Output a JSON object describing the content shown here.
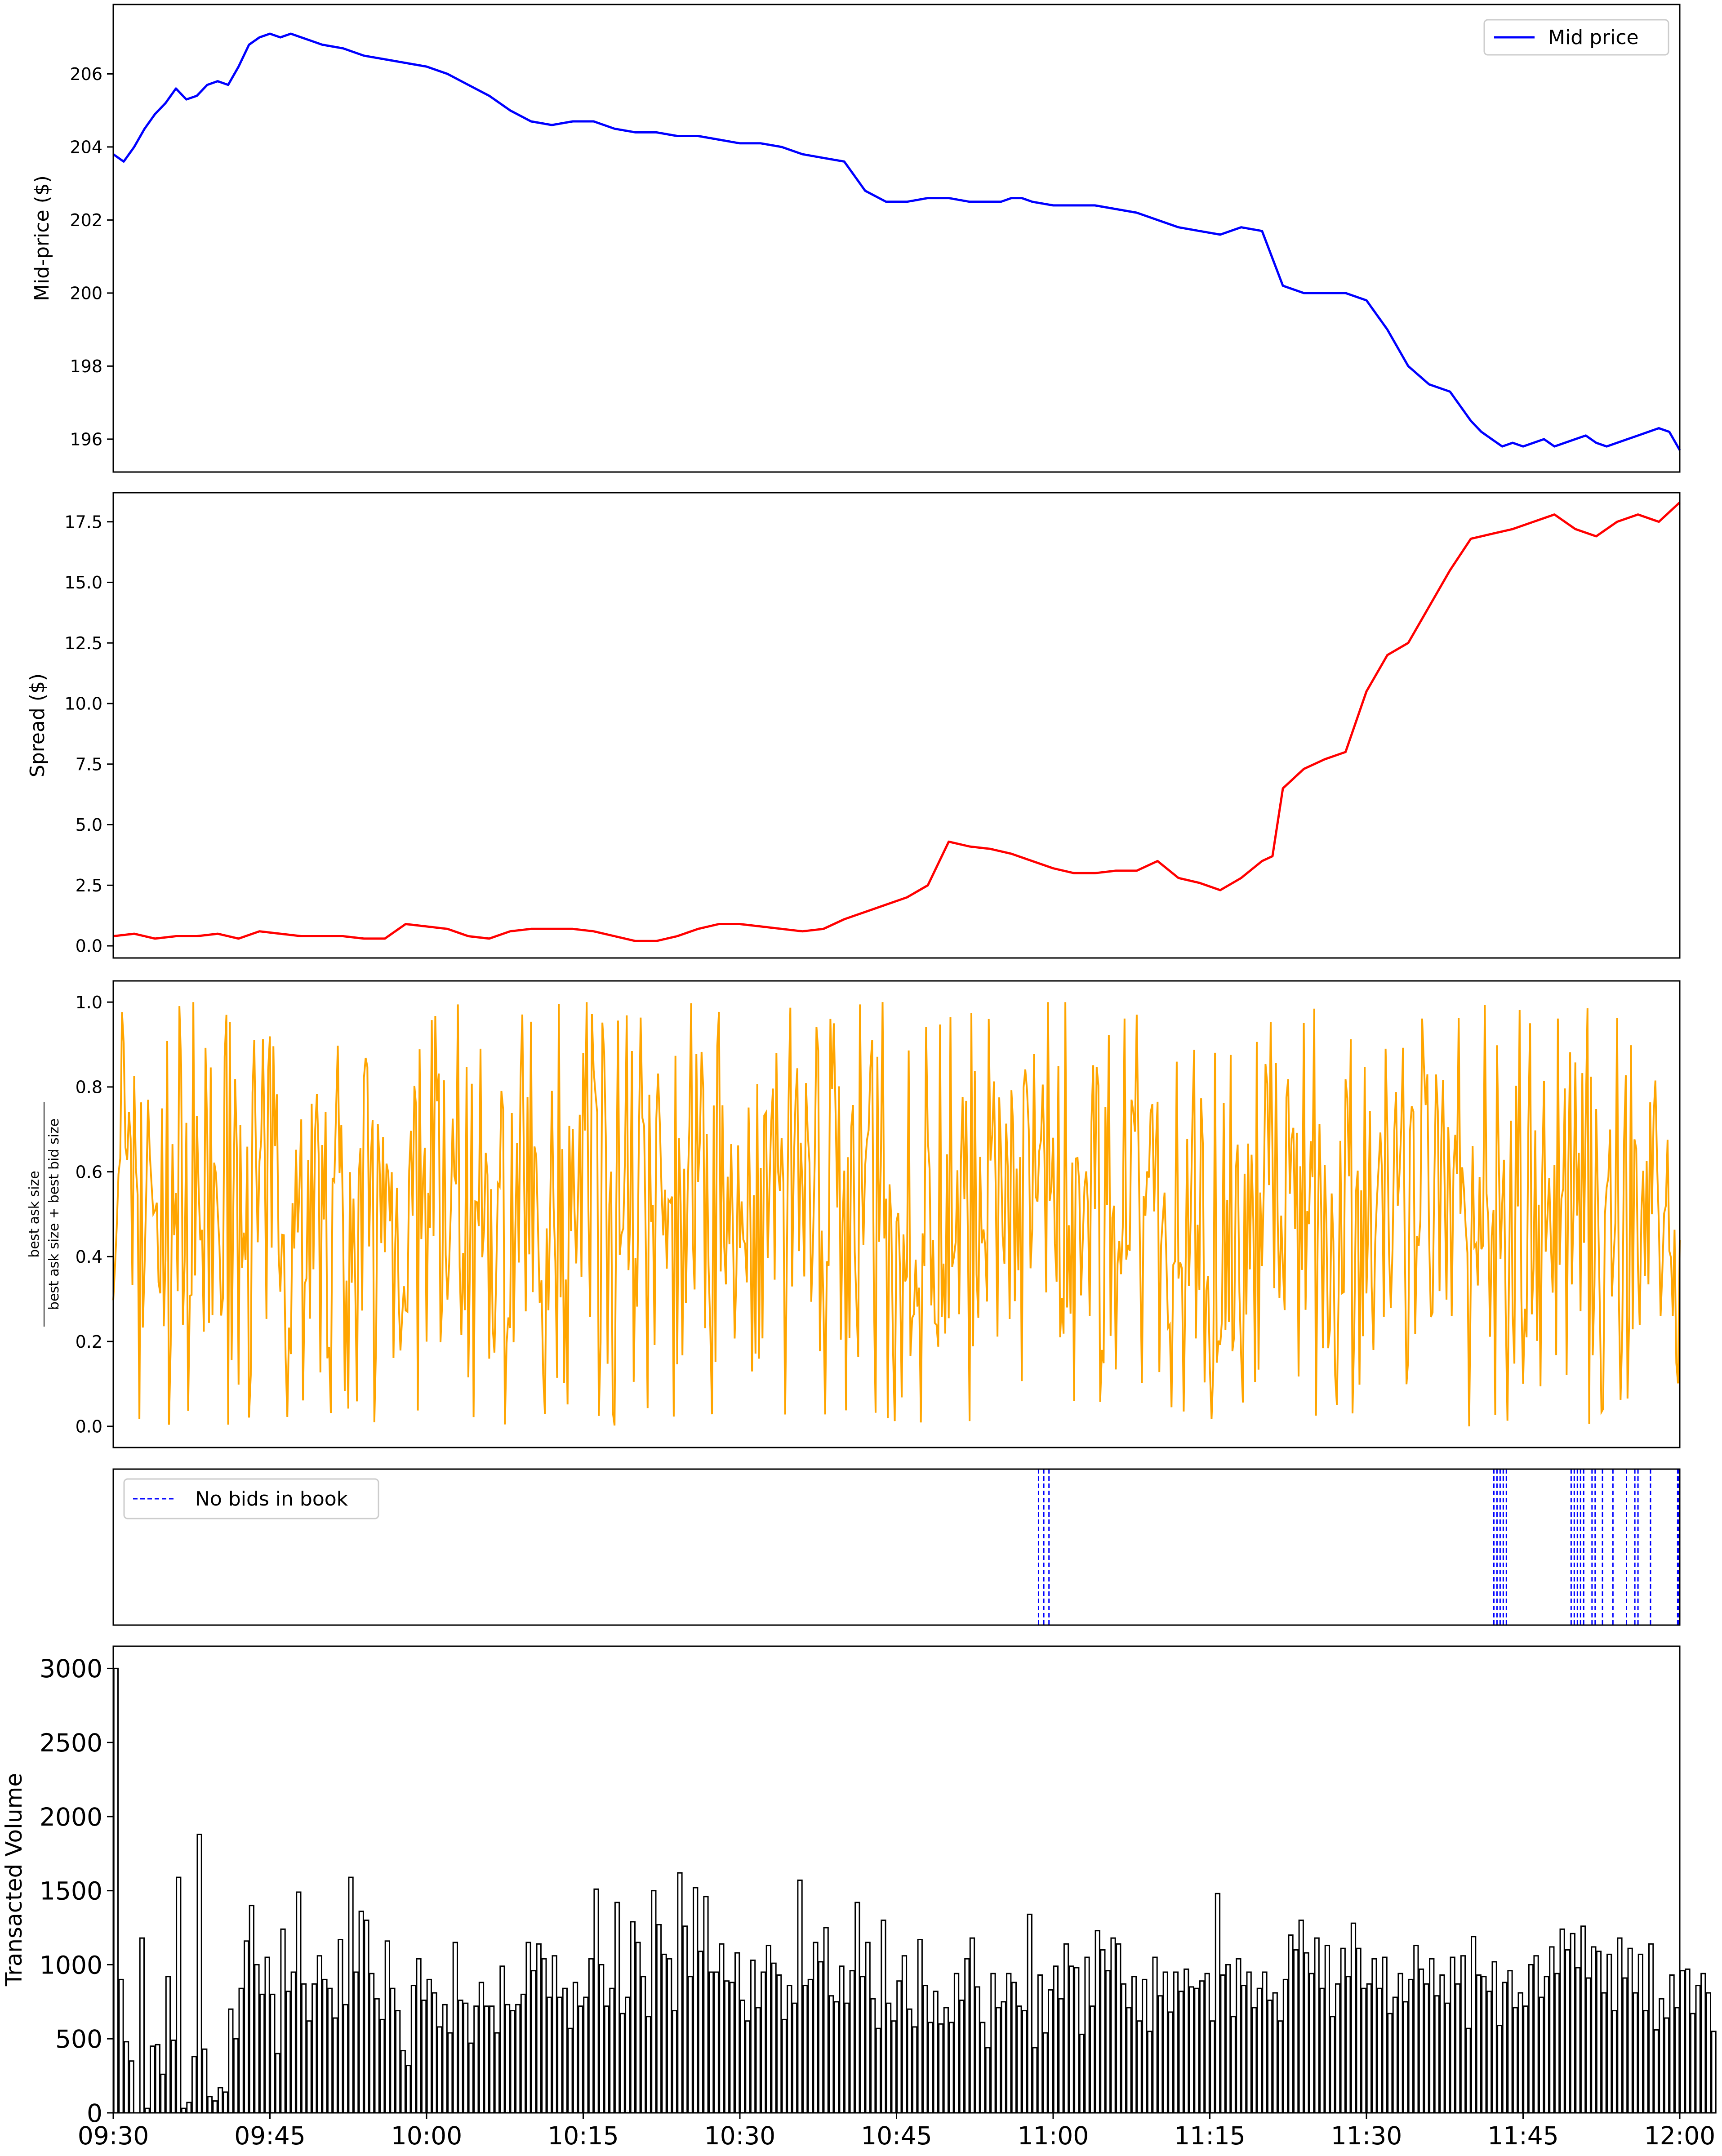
{
  "chart_data": [
    {
      "type": "line",
      "ylabel": "Mid-price ($)",
      "ylim": [
        195.1,
        207.9
      ],
      "yticks": [
        196,
        198,
        200,
        202,
        204,
        206
      ],
      "grid": false,
      "legend": "top-right",
      "x_range": [
        "09:30",
        "12:00"
      ],
      "series": [
        {
          "name": "Mid price",
          "color": "#0000ff",
          "x_minutes": [
            0,
            1,
            2,
            3,
            4,
            5,
            6,
            7,
            8,
            9,
            10,
            11,
            12,
            13,
            14,
            15,
            16,
            17,
            18,
            19,
            20,
            22,
            24,
            26,
            28,
            30,
            32,
            34,
            36,
            38,
            40,
            42,
            44,
            46,
            48,
            50,
            52,
            54,
            56,
            58,
            60,
            62,
            64,
            66,
            68,
            70,
            72,
            74,
            76,
            78,
            80,
            82,
            84,
            85,
            86,
            87,
            88,
            90,
            92,
            94,
            96,
            98,
            100,
            102,
            104,
            106,
            108,
            110,
            112,
            114,
            116,
            118,
            120,
            122,
            124,
            126,
            128,
            130,
            131,
            132,
            133,
            134,
            135,
            136,
            137,
            138,
            139,
            140,
            141,
            142,
            143,
            144,
            145,
            146,
            147,
            148,
            149,
            150
          ],
          "values": [
            203.8,
            203.6,
            204.0,
            204.5,
            204.9,
            205.2,
            205.6,
            205.3,
            205.4,
            205.7,
            205.8,
            205.7,
            206.2,
            206.8,
            207.0,
            207.1,
            207.0,
            207.1,
            207.0,
            206.9,
            206.8,
            206.7,
            206.5,
            206.4,
            206.3,
            206.2,
            206.0,
            205.7,
            205.4,
            205.0,
            204.7,
            204.6,
            204.7,
            204.7,
            204.5,
            204.4,
            204.4,
            204.3,
            204.3,
            204.2,
            204.1,
            204.1,
            204.0,
            203.8,
            203.7,
            203.6,
            202.8,
            202.5,
            202.5,
            202.6,
            202.6,
            202.5,
            202.5,
            202.5,
            202.6,
            202.6,
            202.5,
            202.4,
            202.4,
            202.4,
            202.3,
            202.2,
            202.0,
            201.8,
            201.7,
            201.6,
            201.8,
            201.7,
            200.2,
            200.0,
            200.0,
            200.0,
            199.8,
            199.0,
            198.0,
            197.5,
            197.3,
            196.5,
            196.2,
            196.0,
            195.8,
            195.9,
            195.8,
            195.9,
            196.0,
            195.8,
            195.9,
            196.0,
            196.1,
            195.9,
            195.8,
            195.9,
            196.0,
            196.1,
            196.2,
            196.3,
            196.2,
            195.7
          ]
        }
      ]
    },
    {
      "type": "line",
      "ylabel": "Spread ($)",
      "ylim": [
        -0.5,
        18.7
      ],
      "yticks": [
        0.0,
        2.5,
        5.0,
        7.5,
        10.0,
        12.5,
        15.0,
        17.5
      ],
      "ytick_labels": [
        "0.0",
        "2.5",
        "5.0",
        "7.5",
        "10.0",
        "12.5",
        "15.0",
        "17.5"
      ],
      "grid": false,
      "x_range": [
        "09:30",
        "12:00"
      ],
      "series": [
        {
          "color": "#ff0000",
          "x_minutes": [
            0,
            2,
            4,
            6,
            8,
            10,
            12,
            14,
            16,
            18,
            20,
            22,
            24,
            26,
            28,
            30,
            32,
            34,
            36,
            38,
            40,
            42,
            44,
            46,
            48,
            50,
            52,
            54,
            56,
            58,
            60,
            62,
            64,
            66,
            68,
            70,
            72,
            74,
            76,
            78,
            80,
            82,
            84,
            86,
            88,
            90,
            92,
            94,
            96,
            98,
            100,
            102,
            104,
            106,
            108,
            110,
            111,
            112,
            114,
            116,
            118,
            120,
            122,
            124,
            126,
            128,
            130,
            132,
            134,
            136,
            138,
            140,
            142,
            144,
            146,
            148,
            150
          ],
          "values": [
            0.4,
            0.5,
            0.3,
            0.4,
            0.4,
            0.5,
            0.3,
            0.6,
            0.5,
            0.4,
            0.4,
            0.4,
            0.3,
            0.3,
            0.9,
            0.8,
            0.7,
            0.4,
            0.3,
            0.6,
            0.7,
            0.7,
            0.7,
            0.6,
            0.4,
            0.2,
            0.2,
            0.4,
            0.7,
            0.9,
            0.9,
            0.8,
            0.7,
            0.6,
            0.7,
            1.1,
            1.4,
            1.7,
            2.0,
            2.5,
            4.3,
            4.1,
            4.0,
            3.8,
            3.5,
            3.2,
            3.0,
            3.0,
            3.1,
            3.1,
            3.5,
            2.8,
            2.6,
            2.3,
            2.8,
            3.5,
            3.7,
            6.5,
            7.3,
            7.7,
            8.0,
            10.5,
            12.0,
            12.5,
            14.0,
            15.5,
            16.8,
            17.0,
            17.2,
            17.5,
            17.8,
            17.2,
            16.9,
            17.5,
            17.8,
            17.5,
            18.3
          ]
        }
      ]
    },
    {
      "type": "line",
      "ylabel": "best ask size",
      "ylabel_denominator": "best ask size + best bid size",
      "ylim": [
        -0.05,
        1.05
      ],
      "yticks": [
        0.0,
        0.2,
        0.4,
        0.6,
        0.8,
        1.0
      ],
      "ytick_labels": [
        "0.0",
        "0.2",
        "0.4",
        "0.6",
        "0.8",
        "1.0"
      ],
      "grid": false,
      "x_range": [
        "09:30",
        "12:00"
      ],
      "series": [
        {
          "color": "#ffa500",
          "value_range": [
            0.0,
            1.0
          ],
          "mean": 0.5,
          "sampling_interval_seconds": 10
        }
      ]
    },
    {
      "type": "line",
      "legend": "top-left",
      "grid": false,
      "x_range": [
        "09:30",
        "12:00"
      ],
      "series": [
        {
          "name": "No bids in book",
          "color": "#0000ff",
          "linestyle": "dashed",
          "x_minutes": [
            88.6,
            89.1,
            89.6,
            132.2,
            132.5,
            132.8,
            133.1,
            133.4,
            139.6,
            139.9,
            140.2,
            140.5,
            140.8,
            141.6,
            141.9,
            142.6,
            143.6,
            144.9,
            145.7,
            146.0,
            147.2,
            149.8,
            150.0
          ]
        }
      ]
    },
    {
      "type": "bar",
      "ylabel": "Transacted Volume",
      "ylim": [
        0,
        3150
      ],
      "yticks": [
        0,
        500,
        1000,
        1500,
        2000,
        2500,
        3000
      ],
      "grid": false,
      "x_range": [
        "09:30",
        "12:00"
      ],
      "xticks": [
        "09:30",
        "09:45",
        "10:00",
        "10:15",
        "10:30",
        "10:45",
        "11:00",
        "11:15",
        "11:30",
        "11:45",
        "12:00"
      ],
      "bin_minutes": 0.5,
      "values": [
        3000,
        900,
        480,
        350,
        0,
        1180,
        30,
        450,
        460,
        260,
        920,
        490,
        1590,
        30,
        70,
        380,
        1880,
        430,
        110,
        80,
        170,
        140,
        700,
        500,
        840,
        1160,
        1400,
        1000,
        800,
        1050,
        800,
        400,
        1240,
        820,
        950,
        1490,
        870,
        620,
        870,
        1060,
        900,
        840,
        640,
        1170,
        730,
        1590,
        950,
        1360,
        1300,
        940,
        770,
        630,
        1160,
        840,
        690,
        420,
        320,
        860,
        1040,
        760,
        900,
        810,
        580,
        730,
        540,
        1150,
        760,
        740,
        470,
        720,
        880,
        720,
        720,
        540,
        990,
        730,
        690,
        730,
        800,
        1150,
        960,
        1140,
        1040,
        780,
        1060,
        780,
        840,
        570,
        880,
        720,
        780,
        1040,
        1510,
        1000,
        720,
        840,
        1420,
        670,
        780,
        1290,
        1150,
        920,
        650,
        1500,
        1270,
        1070,
        1040,
        690,
        1620,
        1260,
        920,
        1520,
        1090,
        1460,
        950,
        950,
        1140,
        890,
        880,
        1080,
        760,
        620,
        1030,
        710,
        950,
        1130,
        1010,
        930,
        630,
        860,
        740,
        1570,
        860,
        900,
        1150,
        1020,
        1250,
        790,
        750,
        990,
        740,
        960,
        1420,
        920,
        1150,
        770,
        570,
        1300,
        740,
        620,
        890,
        1060,
        700,
        580,
        1170,
        860,
        610,
        820,
        600,
        710,
        610,
        940,
        760,
        1040,
        1180,
        850,
        610,
        440,
        940,
        710,
        750,
        940,
        880,
        720,
        690,
        1340,
        440,
        930,
        540,
        830,
        990,
        770,
        1140,
        990,
        980,
        530,
        1050,
        720,
        1230,
        1100,
        960,
        1180,
        1140,
        870,
        710,
        920,
        620,
        900,
        550,
        1050,
        790,
        950,
        680,
        950,
        820,
        970,
        850,
        840,
        890,
        940,
        620,
        1480,
        930,
        1000,
        650,
        1040,
        860,
        950,
        710,
        840,
        950,
        760,
        810,
        620,
        900,
        1200,
        1100,
        1300,
        1080,
        940,
        1180,
        840,
        1130,
        650,
        870,
        1110,
        920,
        1280,
        1110,
        840,
        870,
        1040,
        840,
        1050,
        670,
        780,
        940,
        750,
        900,
        1130,
        970,
        870,
        1040,
        790,
        930,
        740,
        1050,
        870,
        1060,
        570,
        1190,
        930,
        920,
        820,
        1020,
        590,
        880,
        960,
        710,
        810,
        720,
        1000,
        1060,
        780,
        920,
        1120,
        940,
        1240,
        1100,
        1210,
        980,
        1260,
        910,
        1120,
        1090,
        810,
        1070,
        690,
        1180,
        910,
        1110,
        810,
        1070,
        690,
        1140,
        560,
        770,
        640,
        930,
        710,
        960,
        970,
        670,
        860,
        940,
        810,
        550
      ]
    }
  ]
}
